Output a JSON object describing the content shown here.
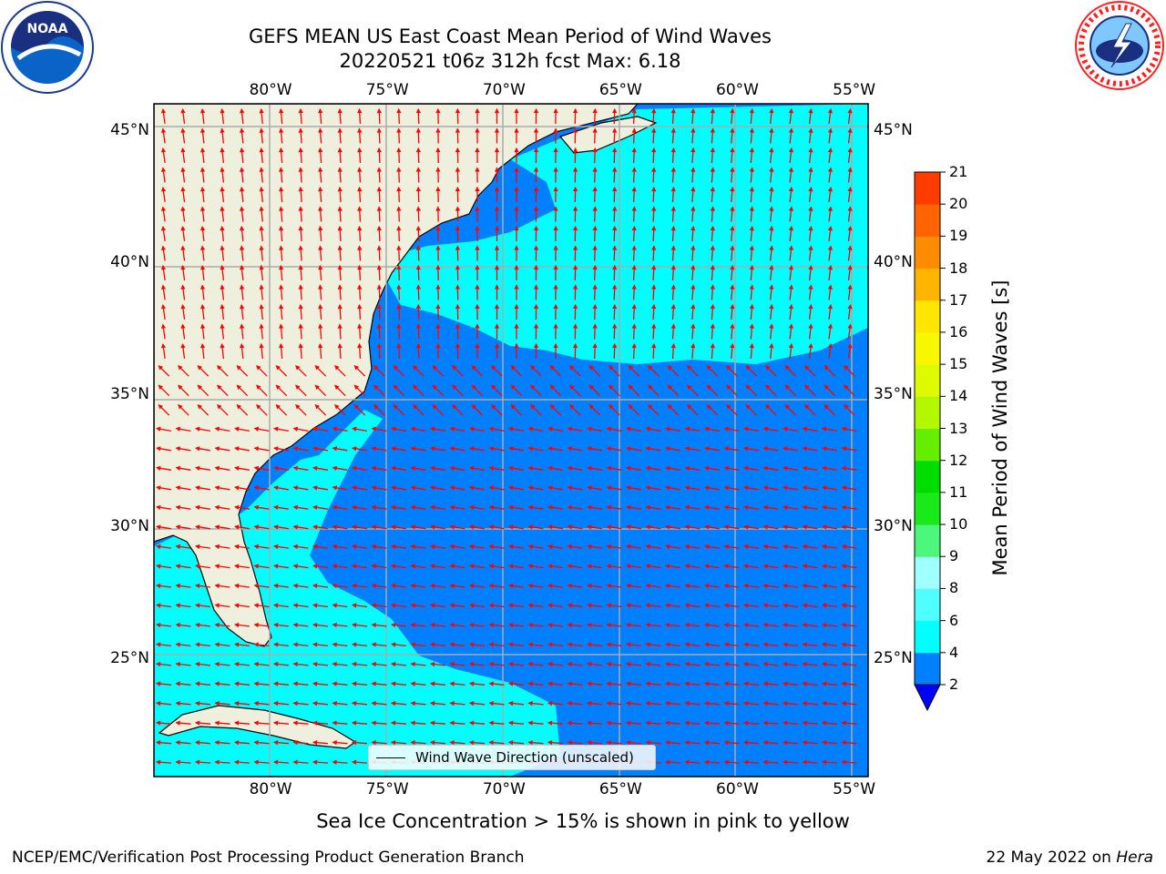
{
  "header": {
    "title": "GEFS MEAN US East Coast Mean Period of Wind Waves",
    "subtitle": "20220521 t06z 312h fcst   Max: 6.18"
  },
  "logos": {
    "left": "NOAA",
    "right": "NATIONAL WEATHER SERVICE"
  },
  "axes": {
    "lon_labels": [
      "80°W",
      "75°W",
      "70°W",
      "65°W",
      "60°W",
      "55°W"
    ],
    "lat_labels": [
      "45°N",
      "40°N",
      "35°N",
      "30°N",
      "25°N"
    ],
    "lon_values": [
      -80,
      -75,
      -70,
      -65,
      -60,
      -55
    ],
    "lat_values": [
      45,
      40,
      35,
      30,
      25
    ],
    "lon_range": [
      -85,
      -54.4
    ],
    "lat_range": [
      20.5,
      46
    ]
  },
  "legend": {
    "label": "Wind Wave Direction (unscaled)"
  },
  "colorbar": {
    "title": "Mean Period of Wind Waves [s]",
    "ticks": [
      2,
      4,
      6,
      8,
      9,
      10,
      11,
      12,
      13,
      14,
      15,
      16,
      17,
      18,
      19,
      20,
      21
    ],
    "colors": [
      "#0080ff",
      "#00ffff",
      "#4fffff",
      "#a0ffff",
      "#4df77d",
      "#1ae91a",
      "#00dd00",
      "#66ee00",
      "#b3f700",
      "#ddfa00",
      "#f7f700",
      "#ffe600",
      "#ffb400",
      "#ff8c00",
      "#ff6400",
      "#ff3c00",
      "#ff0000"
    ],
    "under_color": "#0000ff"
  },
  "colors": {
    "land": "#efefde",
    "arrow": "#ff0000",
    "grid": "#aaaaaa"
  },
  "footer": {
    "note": "Sea Ice Concentration > 15% is shown in pink to yellow",
    "left": "NCEP/EMC/Verification Post Processing Product Generation Branch",
    "right_date": "22 May 2022 on ",
    "right_host": "Hera"
  }
}
